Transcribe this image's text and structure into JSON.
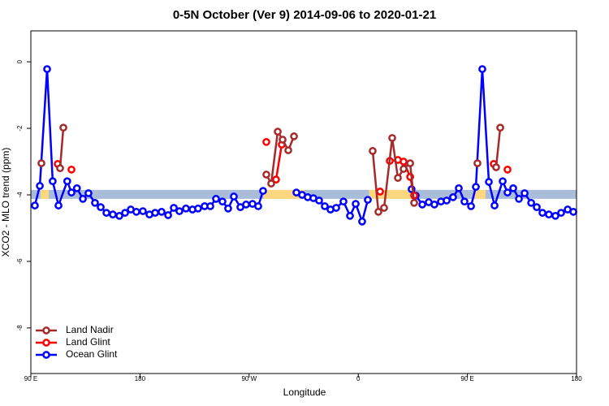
{
  "chart_data": {
    "type": "line",
    "title": "0-5N October (Ver 9)   2014-09-06 to 2020-01-21",
    "x_label": "Longitude",
    "y_label": "XCO2 - MLO trend (ppm)",
    "xlim": [
      90,
      540
    ],
    "ylim": [
      -9.37,
      0.93
    ],
    "xticks": [
      {
        "value": 90,
        "label": "90 E"
      },
      {
        "value": 180,
        "label": "180"
      },
      {
        "value": 270,
        "label": "90 W"
      },
      {
        "value": 360,
        "label": "0"
      },
      {
        "value": 450,
        "label": "90 E"
      },
      {
        "value": 540,
        "label": "180"
      }
    ],
    "yticks": [
      0,
      -2,
      -4,
      -6,
      -8
    ],
    "legend": "bottom-left",
    "band": {
      "ylim": [
        -4.12,
        -3.85
      ],
      "segments": [
        {
          "from": 90,
          "to": 98,
          "color": "#a9bdda"
        },
        {
          "from": 98,
          "to": 104.7,
          "color": "#fcd77f"
        },
        {
          "from": 104.7,
          "to": 282,
          "color": "#a9bdda"
        },
        {
          "from": 282,
          "to": 315.7,
          "color": "#fcd77f"
        },
        {
          "from": 315.7,
          "to": 369,
          "color": "#a9bdda"
        },
        {
          "from": 369,
          "to": 406,
          "color": "#fcd77f"
        },
        {
          "from": 406,
          "to": 456,
          "color": "#a9bdda"
        },
        {
          "from": 456,
          "to": 465,
          "color": "#fcd77f"
        },
        {
          "from": 465,
          "to": 540,
          "color": "#a9bdda"
        }
      ]
    },
    "series": [
      {
        "name": "Land Nadir",
        "color": "#a52a2a",
        "x": [
          98.7,
          null,
          114.1,
          116.8,
          null,
          284.2,
          288.2,
          293.6,
          297.6,
          302.3,
          307,
          null,
          371.9,
          376.6,
          381.3,
          388,
          392.7,
          397.4,
          402.8,
          406.1,
          null,
          458.3,
          null,
          473.7,
          477.1
        ],
        "values": [
          -3.05,
          null,
          -3.2,
          -1.98,
          null,
          -3.39,
          -3.66,
          -2.1,
          -2.34,
          -2.66,
          -2.24,
          null,
          -2.68,
          -4.51,
          -4.39,
          -2.29,
          -3.49,
          -3.22,
          -3.05,
          -4.24,
          null,
          -3.05,
          null,
          -3.17,
          -1.98
        ]
      },
      {
        "name": "Land Glint",
        "color": "#ff0000",
        "x": [
          112.1,
          null,
          123.5,
          null,
          284.2,
          null,
          292.2,
          296.9,
          null,
          378,
          null,
          386,
          392.7,
          397.4,
          402.8,
          406.1,
          null,
          471.7,
          null,
          483.1
        ],
        "values": [
          -3.07,
          null,
          -3.24,
          null,
          -2.41,
          null,
          -3.54,
          -2.49,
          null,
          -3.9,
          null,
          -2.98,
          -2.95,
          -3.0,
          -3.46,
          -4.02,
          null,
          -3.07,
          null,
          -3.24
        ]
      },
      {
        "name": "Ocean Glint",
        "color": "#0000ff",
        "x": [
          93.3,
          97.4,
          103.4,
          108,
          112.8,
          120,
          123.5,
          128,
          132.9,
          137.5,
          142.9,
          147.6,
          152.3,
          157.6,
          163,
          167.7,
          172.4,
          177,
          182.4,
          187.8,
          192.5,
          197.8,
          203.2,
          207.9,
          212.5,
          217.9,
          223.3,
          227.9,
          233.3,
          238,
          242.7,
          248,
          252.7,
          257.4,
          262.8,
          267.5,
          272.8,
          277.5,
          281.5,
          null,
          309,
          313.7,
          318.3,
          323,
          327.7,
          332.4,
          337.1,
          341.8,
          347.8,
          353.2,
          357.9,
          363.2,
          367.9,
          null,
          404,
          407.4,
          412.8,
          418.1,
          422.8,
          428.2,
          432.9,
          438.2,
          442.9,
          447.6,
          453,
          457,
          462.3,
          467.7,
          472.4,
          479.1,
          483.1,
          487.8,
          492.5,
          497.2,
          502.6,
          507.2,
          511.9,
          517.2,
          522.6,
          527.3,
          532.7,
          537.4
        ],
        "values": [
          -4.32,
          -3.73,
          -0.22,
          -3.59,
          -4.32,
          -3.59,
          -3.93,
          -3.8,
          -4.12,
          -3.95,
          -4.24,
          -4.37,
          -4.54,
          -4.59,
          -4.63,
          -4.54,
          -4.44,
          -4.51,
          -4.49,
          -4.59,
          -4.54,
          -4.51,
          -4.61,
          -4.39,
          -4.49,
          -4.41,
          -4.44,
          -4.41,
          -4.34,
          -4.34,
          -4.12,
          -4.2,
          -4.41,
          -4.05,
          -4.37,
          -4.29,
          -4.27,
          -4.34,
          -3.88,
          null,
          -3.93,
          -4.0,
          -4.07,
          -4.1,
          -4.17,
          -4.34,
          -4.44,
          -4.39,
          -4.2,
          -4.63,
          -4.27,
          -4.8,
          -4.15,
          null,
          -3.83,
          -4.02,
          -4.29,
          -4.22,
          -4.29,
          -4.2,
          -4.17,
          -4.07,
          -3.8,
          -4.2,
          -4.34,
          -3.76,
          -0.22,
          -3.61,
          -4.32,
          -3.59,
          -3.93,
          -3.8,
          -4.12,
          -3.95,
          -4.24,
          -4.37,
          -4.54,
          -4.59,
          -4.63,
          -4.54,
          -4.44,
          -4.51
        ]
      }
    ]
  }
}
